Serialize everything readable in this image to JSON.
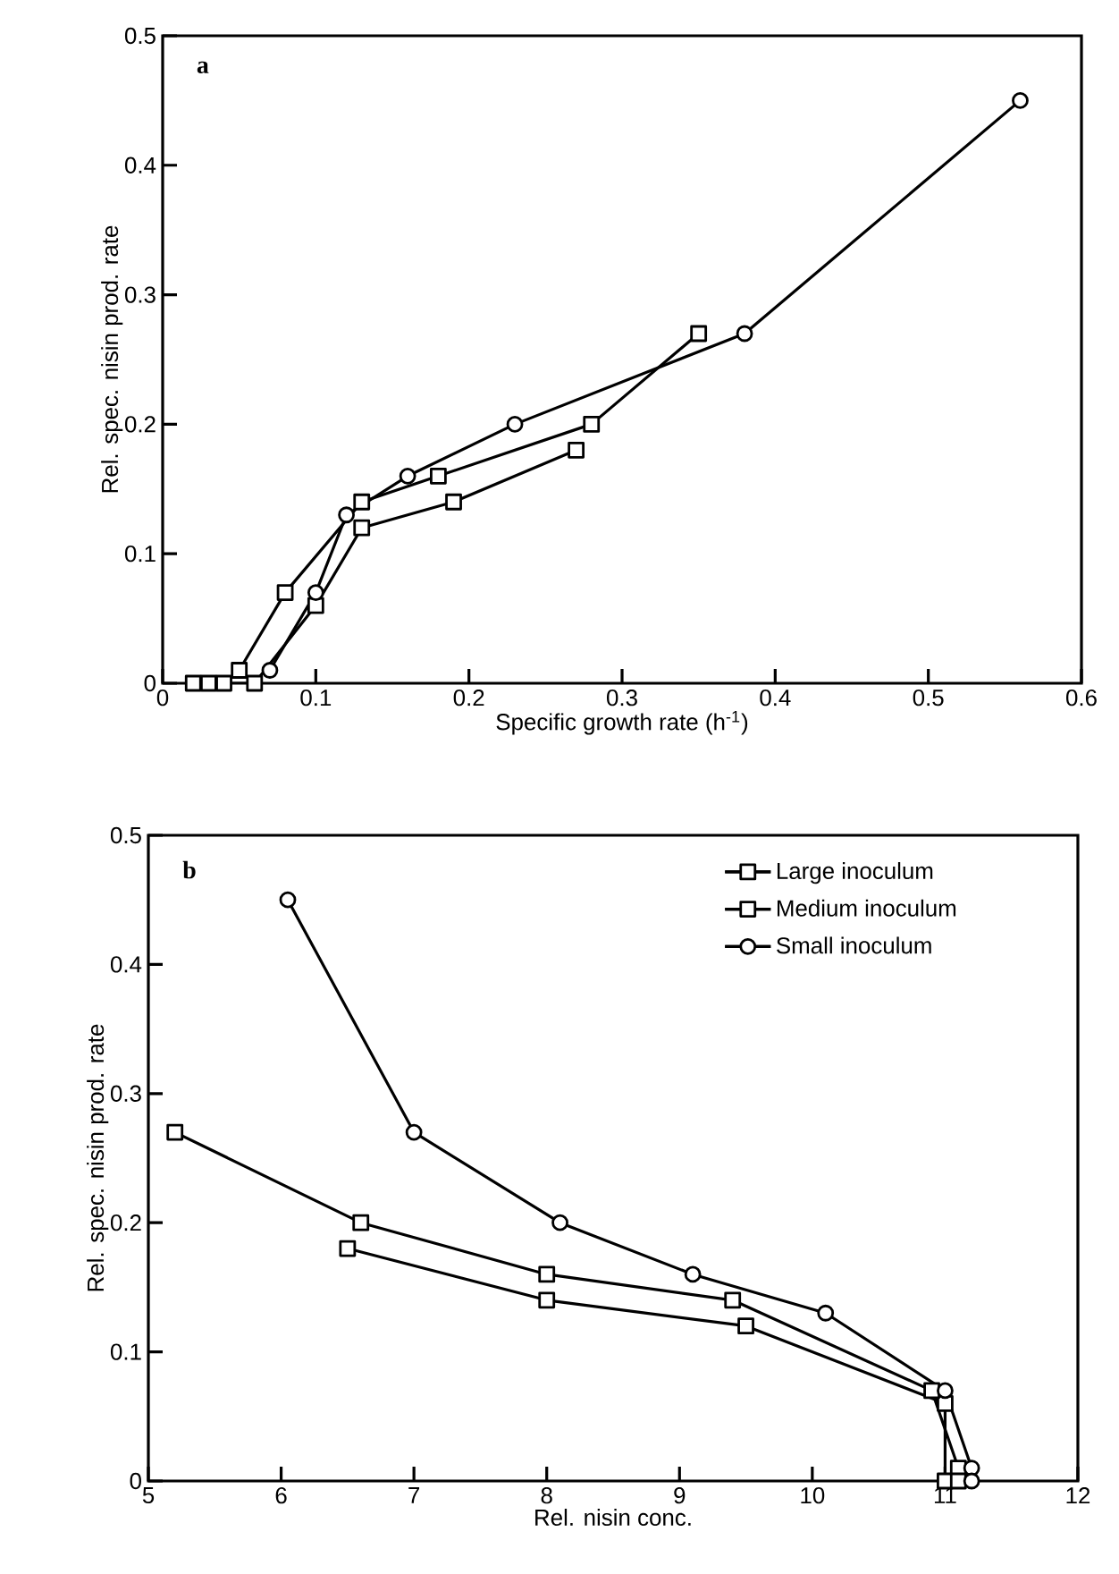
{
  "chart_data": [
    {
      "type": "line",
      "xlabel": "Specific growth rate (h$^{-1}$)",
      "ylabel": "Rel. spec. nisin prod. rate",
      "annotations": [
        "a"
      ],
      "xlim": [
        0,
        0.6
      ],
      "ylim": [
        0,
        0.5
      ],
      "xticks": [
        0,
        0.1,
        0.2,
        0.3,
        0.4,
        0.5,
        0.6
      ],
      "yticks": [
        0,
        0.1,
        0.2,
        0.3,
        0.4,
        0.5
      ],
      "grid": false,
      "legend": false,
      "series": [
        {
          "color": "#000000",
          "marker": "square",
          "x": [
            0.02,
            0.03,
            0.06,
            0.1,
            0.13,
            0.19,
            0.27
          ],
          "values": [
            0,
            0,
            0,
            0.06,
            0.12,
            0.14,
            0.18
          ]
        },
        {
          "color": "#000000",
          "marker": "square",
          "x": [
            0.04,
            0.05,
            0.08,
            0.13,
            0.18,
            0.28,
            0.35
          ],
          "values": [
            0,
            0.01,
            0.07,
            0.14,
            0.16,
            0.2,
            0.27
          ]
        },
        {
          "color": "#000000",
          "marker": "circle",
          "x": [
            0.07,
            0.1,
            0.12,
            0.16,
            0.23,
            0.38,
            0.56
          ],
          "values": [
            0.01,
            0.07,
            0.13,
            0.16,
            0.2,
            0.27,
            0.45
          ]
        }
      ]
    },
    {
      "type": "line",
      "xlabel": "Rel. nisin conc.",
      "ylabel": "Rel. spec. nisin prod. rate",
      "annotations": [
        "b"
      ],
      "xlim": [
        5,
        12
      ],
      "ylim": [
        0,
        0.5
      ],
      "xticks": [
        5,
        6,
        7,
        8,
        9,
        10,
        11,
        12
      ],
      "yticks": [
        0,
        0.1,
        0.2,
        0.3,
        0.4,
        0.5
      ],
      "grid": false,
      "legend": "top right",
      "series": [
        {
          "name": "Large inoculum",
          "color": "#000000",
          "marker": "square",
          "x": [
            6.5,
            8,
            9.5,
            11,
            11
          ],
          "values": [
            0.18,
            0.14,
            0.12,
            0.06,
            0
          ]
        },
        {
          "name": "Medium inoculum",
          "color": "#000000",
          "marker": "square",
          "x": [
            5.2,
            6.6,
            8,
            9.4,
            10.9,
            11.1,
            11.1
          ],
          "values": [
            0.27,
            0.2,
            0.16,
            0.14,
            0.07,
            0.01,
            0
          ]
        },
        {
          "name": "Small inoculum",
          "color": "#000000",
          "marker": "circle",
          "x": [
            6.05,
            7,
            8.1,
            9.1,
            10.1,
            11,
            11.2,
            11.2
          ],
          "values": [
            0.45,
            0.27,
            0.2,
            0.16,
            0.13,
            0.07,
            0.01,
            0
          ]
        }
      ]
    }
  ]
}
